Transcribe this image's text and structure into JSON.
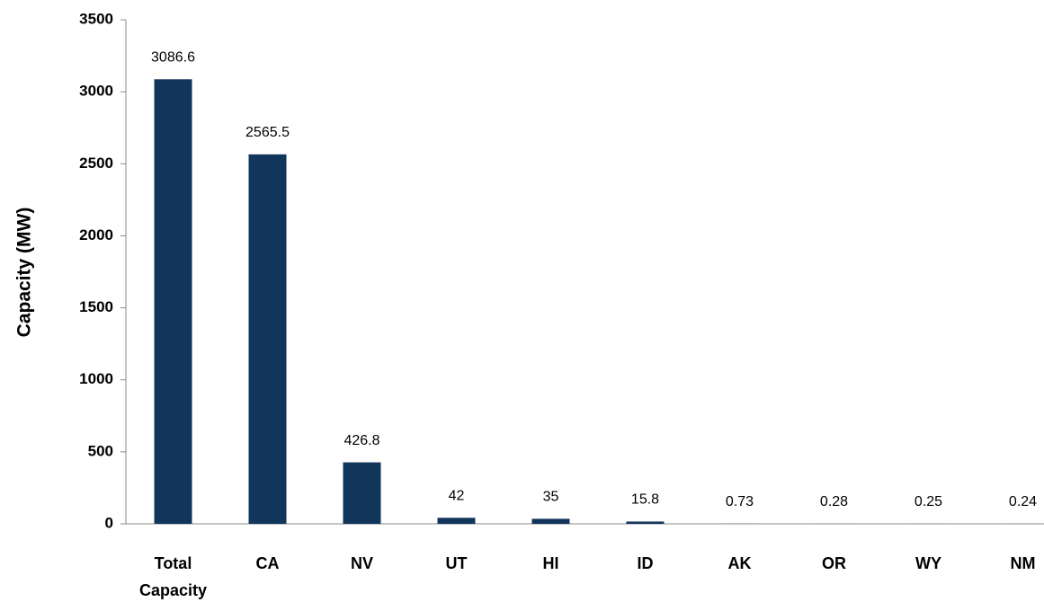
{
  "chart_data": {
    "type": "bar",
    "y_label": "Capacity (MW)",
    "categories": [
      "Total Capacity",
      "CA",
      "NV",
      "UT",
      "HI",
      "ID",
      "AK",
      "OR",
      "WY",
      "NM"
    ],
    "values": [
      3086.6,
      2565.5,
      426.8,
      42,
      35,
      15.8,
      0.73,
      0.28,
      0.25,
      0.24
    ],
    "color": "#12355b",
    "ylim": [
      0,
      3500
    ],
    "yticks": [
      0,
      500,
      1000,
      1500,
      2000,
      2500,
      3000,
      3500
    ],
    "grid": false
  }
}
